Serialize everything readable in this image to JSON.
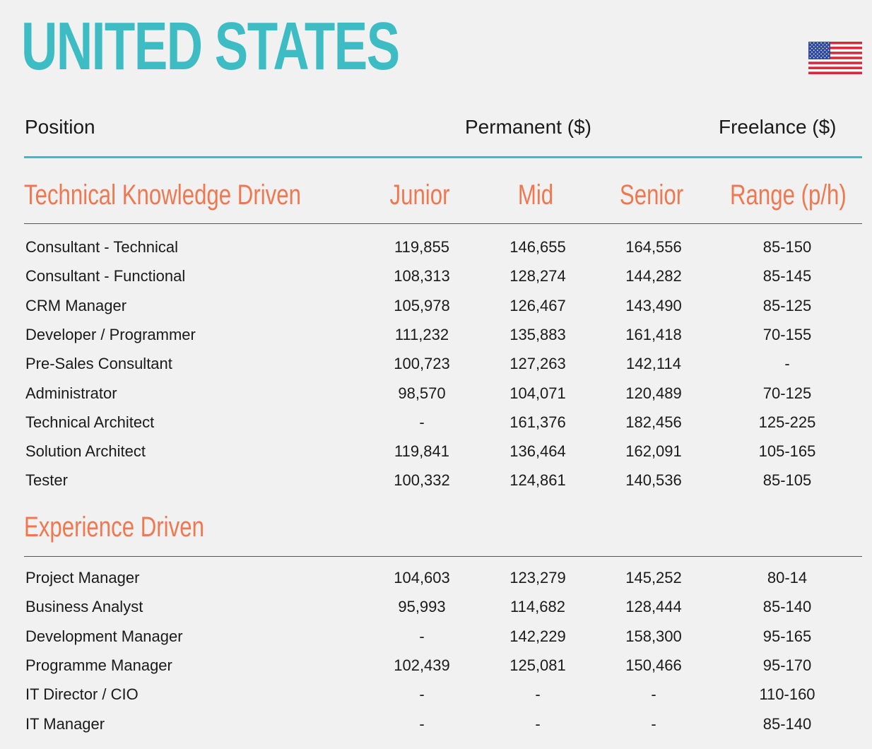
{
  "page_title": "UNITED STATES",
  "flag_icon": "us-flag-icon",
  "colors": {
    "teal": "#3dbdc3",
    "orange": "#f07850"
  },
  "header": {
    "position": "Position",
    "permanent": "Permanent ($)",
    "freelance": "Freelance ($)"
  },
  "columns": {
    "junior": "Junior",
    "mid": "Mid",
    "senior": "Senior",
    "range": "Range (p/h)"
  },
  "sections": [
    {
      "title": "Technical Knowledge Driven",
      "rows": [
        {
          "position": "Consultant - Technical",
          "junior": "119,855",
          "mid": "146,655",
          "senior": "164,556",
          "range": "85-150"
        },
        {
          "position": "Consultant - Functional",
          "junior": "108,313",
          "mid": "128,274",
          "senior": "144,282",
          "range": "85-145"
        },
        {
          "position": "CRM Manager",
          "junior": "105,978",
          "mid": "126,467",
          "senior": "143,490",
          "range": "85-125"
        },
        {
          "position": "Developer / Programmer",
          "junior": "111,232",
          "mid": "135,883",
          "senior": "161,418",
          "range": "70-155"
        },
        {
          "position": "Pre-Sales Consultant",
          "junior": "100,723",
          "mid": "127,263",
          "senior": "142,114",
          "range": "-"
        },
        {
          "position": "Administrator",
          "junior": "98,570",
          "mid": "104,071",
          "senior": "120,489",
          "range": "70-125"
        },
        {
          "position": "Technical Architect",
          "junior": "-",
          "mid": "161,376",
          "senior": "182,456",
          "range": "125-225"
        },
        {
          "position": "Solution Architect",
          "junior": "119,841",
          "mid": "136,464",
          "senior": "162,091",
          "range": "105-165"
        },
        {
          "position": "Tester",
          "junior": "100,332",
          "mid": "124,861",
          "senior": "140,536",
          "range": "85-105"
        }
      ]
    },
    {
      "title": "Experience Driven",
      "rows": [
        {
          "position": "Project Manager",
          "junior": "104,603",
          "mid": "123,279",
          "senior": "145,252",
          "range": "80-14"
        },
        {
          "position": "Business Analyst",
          "junior": "95,993",
          "mid": "114,682",
          "senior": "128,444",
          "range": "85-140"
        },
        {
          "position": "Development Manager",
          "junior": "-",
          "mid": "142,229",
          "senior": "158,300",
          "range": "95-165"
        },
        {
          "position": "Programme Manager",
          "junior": "102,439",
          "mid": "125,081",
          "senior": "150,466",
          "range": "95-170"
        },
        {
          "position": "IT Director / CIO",
          "junior": "-",
          "mid": "-",
          "senior": "-",
          "range": "110-160"
        },
        {
          "position": "IT Manager",
          "junior": "-",
          "mid": "-",
          "senior": "-",
          "range": "85-140"
        }
      ]
    }
  ]
}
